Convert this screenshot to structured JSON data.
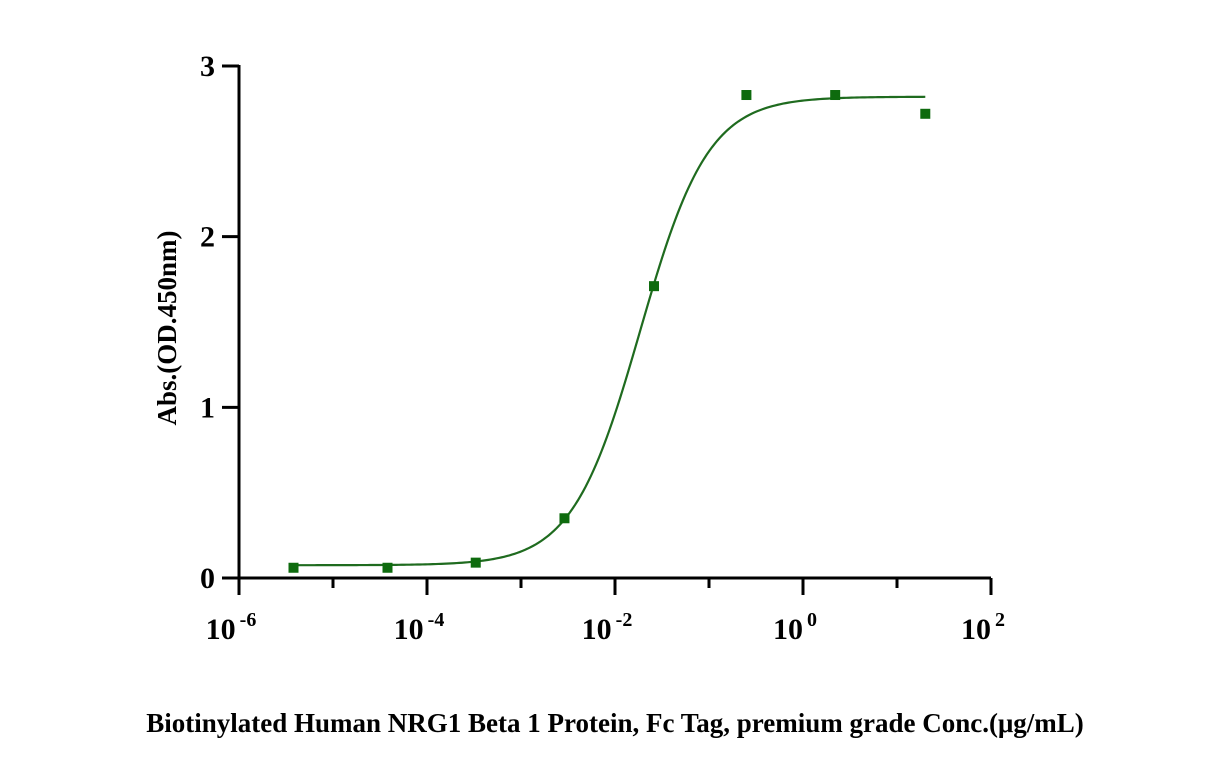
{
  "chart_data": {
    "type": "scatter",
    "title": "",
    "xlabel": "Biotinylated Human NRG1 Beta 1 Protein, Fc Tag, premium grade Conc.(μg/mL)",
    "ylabel": "Abs.(OD.450nm)",
    "x_scale": "log",
    "xlim": [
      1e-06,
      100
    ],
    "ylim": [
      0,
      3
    ],
    "x_ticks": [
      {
        "base": "10",
        "exp": "-6"
      },
      {
        "base": "10",
        "exp": "-4"
      },
      {
        "base": "10",
        "exp": "-2"
      },
      {
        "base": "10",
        "exp": "0"
      },
      {
        "base": "10",
        "exp": "2"
      }
    ],
    "x_tick_values": [
      1e-06,
      0.0001,
      0.01,
      1,
      100
    ],
    "y_ticks": [
      "0",
      "1",
      "2",
      "3"
    ],
    "y_tick_values": [
      0,
      1,
      2,
      3
    ],
    "grid": false,
    "color": "#1f6b1f",
    "marker_color": "#0e6b0e",
    "series": [
      {
        "x": [
          3.8e-06,
          3.8e-05,
          0.00033,
          0.0029,
          0.026,
          0.25,
          2.2,
          20
        ],
        "y": [
          0.06,
          0.06,
          0.09,
          0.35,
          1.71,
          2.83,
          2.83,
          2.72
        ]
      }
    ],
    "fit": {
      "type": "4PL",
      "bottom": 0.075,
      "top": 2.82,
      "ec50": 0.0185,
      "hill": 1.2
    }
  }
}
